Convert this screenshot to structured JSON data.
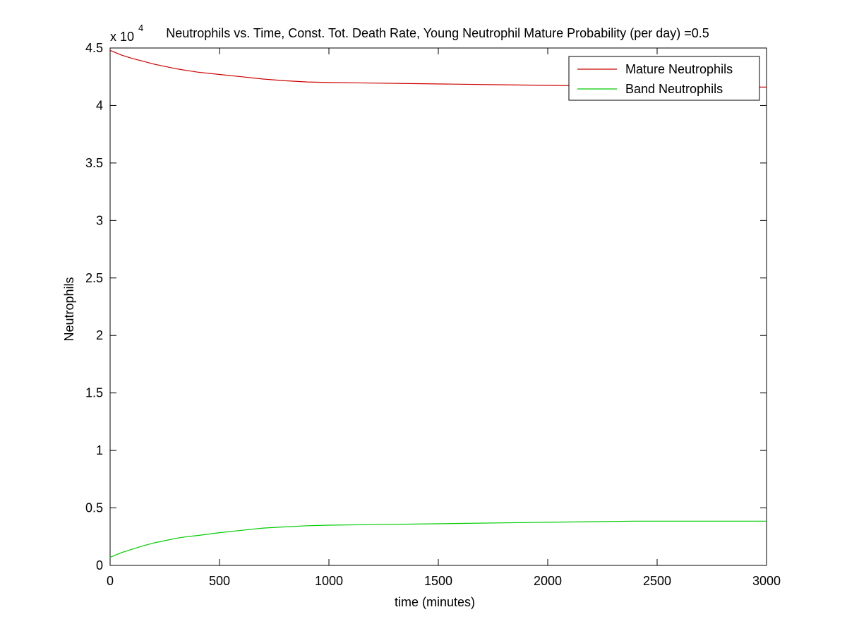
{
  "chart_data": {
    "type": "line",
    "title": "Neutrophils vs. Time, Const. Tot. Death Rate, Young Neutrophil Mature Probability (per day) =0.5",
    "xlabel": "time (minutes)",
    "ylabel": "Neutrophils",
    "y_multiplier_label": "x 10",
    "y_multiplier_exponent": "4",
    "xlim": [
      0,
      3000
    ],
    "ylim": [
      0,
      4.5
    ],
    "x_ticks": [
      "0",
      "500",
      "1000",
      "1500",
      "2000",
      "2500",
      "3000"
    ],
    "y_ticks": [
      "0",
      "0.5",
      "1",
      "1.5",
      "2",
      "2.5",
      "3",
      "3.5",
      "4",
      "4.5"
    ],
    "grid": false,
    "legend_position": "top-right",
    "series": [
      {
        "name": "Mature Neutrophils",
        "color": "#cc0000",
        "x": [
          0,
          50,
          100,
          150,
          200,
          250,
          300,
          350,
          400,
          500,
          600,
          700,
          800,
          900,
          1000,
          1200,
          1400,
          1600,
          1800,
          2000,
          2200,
          2400,
          2600,
          2800,
          3000
        ],
        "y": [
          4.48,
          4.44,
          4.41,
          4.385,
          4.36,
          4.34,
          4.32,
          4.305,
          4.29,
          4.27,
          4.25,
          4.23,
          4.215,
          4.205,
          4.2,
          4.195,
          4.19,
          4.185,
          4.18,
          4.175,
          4.17,
          4.165,
          4.16,
          4.16,
          4.16
        ]
      },
      {
        "name": "Band Neutrophils",
        "color": "#00cc00",
        "x": [
          0,
          50,
          100,
          150,
          200,
          250,
          300,
          350,
          400,
          500,
          600,
          700,
          800,
          900,
          1000,
          1200,
          1400,
          1600,
          1800,
          2000,
          2200,
          2400,
          2600,
          2800,
          3000
        ],
        "y": [
          0.07,
          0.11,
          0.14,
          0.17,
          0.195,
          0.215,
          0.235,
          0.25,
          0.26,
          0.285,
          0.305,
          0.325,
          0.335,
          0.345,
          0.35,
          0.355,
          0.36,
          0.365,
          0.37,
          0.375,
          0.38,
          0.385,
          0.385,
          0.385,
          0.385
        ]
      }
    ]
  }
}
